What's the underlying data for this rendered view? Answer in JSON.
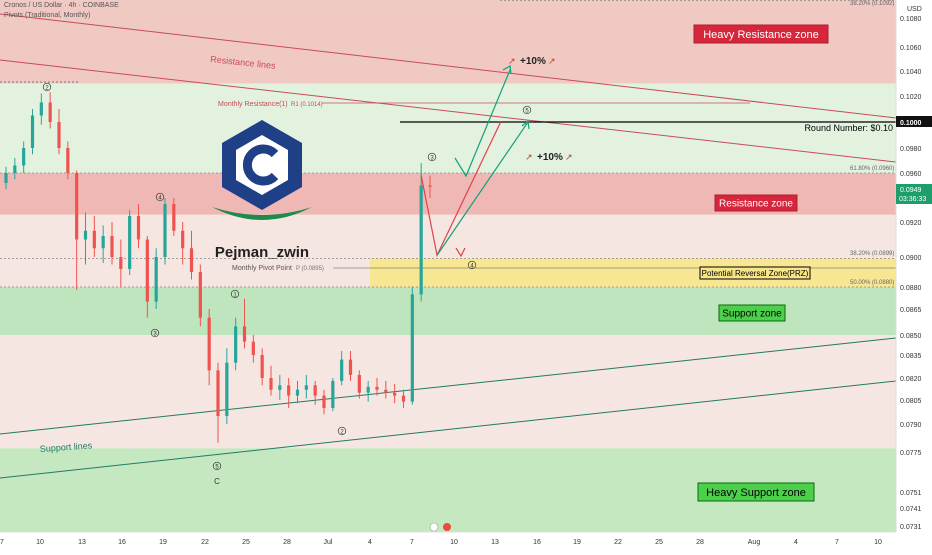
{
  "header": {
    "symbol_line": "Cronos / US Dollar · 4h · COINBASE",
    "indicator_line": "Pivots (Traditional, Monthly)",
    "author": "Pejman_zwin"
  },
  "colors": {
    "up": "#26a69a",
    "down": "#ef5350",
    "resistance_fill": "#f2c1be",
    "support_fill": "#cdeccd",
    "prz_fill": "#f7e58a",
    "logo_blue": "#1f3f87",
    "logo_green": "#1f8a4c"
  },
  "chart_data": {
    "type": "candlestick",
    "title": "Cronos / US Dollar · 4h · COINBASE",
    "y_axis_label": "USD",
    "ylim": [
      0.0725,
      0.1092
    ],
    "y_ticks": [
      "0.1080",
      "0.1060",
      "0.1040",
      "0.1020",
      "0.1000",
      "0.0980",
      "0.0960",
      "0.0940",
      "0.0920",
      "0.0900",
      "0.0880",
      "0.0865",
      "0.0850",
      "0.0835",
      "0.0820",
      "0.0805",
      "0.0790",
      "0.0775",
      "0.0751",
      "0.0741",
      "0.0731"
    ],
    "x_ticks": [
      "7",
      "10",
      "13",
      "16",
      "19",
      "22",
      "25",
      "28",
      "Jul",
      "4",
      "7",
      "10",
      "13",
      "16",
      "19",
      "22",
      "25",
      "28",
      "Aug",
      "4",
      "7",
      "10"
    ],
    "current_price": {
      "value": 0.0949,
      "label": "0.0949",
      "countdown": "03:36:33"
    },
    "round_number": {
      "value": 0.1,
      "label": "0.1000",
      "text": "Round Number: $0.10"
    },
    "zones": [
      {
        "name": "Heavy Resistance zone",
        "from": 0.103,
        "to": 0.1092
      },
      {
        "name": "Resistance zone",
        "from": 0.0926,
        "to": 0.096
      },
      {
        "name": "Potential Reversal Zone(PRZ)",
        "from": 0.088,
        "to": 0.0899
      },
      {
        "name": "Support zone",
        "from": 0.085,
        "to": 0.088
      },
      {
        "name": "Heavy Support zone",
        "from": 0.0731,
        "to": 0.0777
      }
    ],
    "fib_labels": [
      {
        "text": "38.20% (0.1092)",
        "value": 0.1092
      },
      {
        "text": "61.80% (0.0960)",
        "value": 0.096
      },
      {
        "text": "38.20% (0.0899)",
        "value": 0.0899
      },
      {
        "text": "50.00% (0.0880)",
        "value": 0.088
      }
    ],
    "pivots": [
      {
        "text": "Monthly Resistance(1)",
        "value_text": "R1 (0.1014)",
        "value": 0.1014
      },
      {
        "text": "Monthly Pivot Point",
        "value_text": "P (0.0895)",
        "value": 0.0895
      }
    ],
    "line_labels": {
      "resistance": "Resistance lines",
      "support": "Support lines"
    },
    "annotations": [
      "+10%",
      "+10%"
    ],
    "wave_labels": [
      "1",
      "2",
      "3",
      "4",
      "5",
      "C"
    ],
    "candles": [
      [
        0.0952,
        0.0965,
        0.0947,
        0.096
      ],
      [
        0.096,
        0.0972,
        0.0955,
        0.0966
      ],
      [
        0.0966,
        0.0985,
        0.096,
        0.098
      ],
      [
        0.098,
        0.101,
        0.0975,
        0.1005
      ],
      [
        0.1005,
        0.1022,
        0.0998,
        0.1015
      ],
      [
        0.1015,
        0.1023,
        0.0995,
        0.1
      ],
      [
        0.1,
        0.101,
        0.0975,
        0.098
      ],
      [
        0.098,
        0.0985,
        0.0955,
        0.096
      ],
      [
        0.096,
        0.0962,
        0.0878,
        0.091
      ],
      [
        0.091,
        0.0928,
        0.0895,
        0.0915
      ],
      [
        0.0915,
        0.0925,
        0.09,
        0.0905
      ],
      [
        0.0905,
        0.0918,
        0.0896,
        0.0912
      ],
      [
        0.0912,
        0.092,
        0.0895,
        0.09
      ],
      [
        0.09,
        0.091,
        0.088,
        0.0892
      ],
      [
        0.0892,
        0.093,
        0.0888,
        0.0925
      ],
      [
        0.0925,
        0.0935,
        0.0905,
        0.091
      ],
      [
        0.091,
        0.0912,
        0.086,
        0.087
      ],
      [
        0.087,
        0.0905,
        0.0865,
        0.09
      ],
      [
        0.09,
        0.094,
        0.0895,
        0.0935
      ],
      [
        0.0935,
        0.094,
        0.0912,
        0.0915
      ],
      [
        0.0915,
        0.092,
        0.0895,
        0.0905
      ],
      [
        0.0905,
        0.0915,
        0.0885,
        0.089
      ],
      [
        0.089,
        0.0895,
        0.0855,
        0.086
      ],
      [
        0.086,
        0.0865,
        0.0815,
        0.0825
      ],
      [
        0.0825,
        0.083,
        0.078,
        0.0795
      ],
      [
        0.0795,
        0.084,
        0.079,
        0.083
      ],
      [
        0.083,
        0.086,
        0.0825,
        0.0855
      ],
      [
        0.0855,
        0.0872,
        0.084,
        0.0845
      ],
      [
        0.0845,
        0.085,
        0.083,
        0.0835
      ],
      [
        0.0835,
        0.084,
        0.0815,
        0.082
      ],
      [
        0.082,
        0.0828,
        0.0808,
        0.0812
      ],
      [
        0.0812,
        0.0822,
        0.0805,
        0.0815
      ],
      [
        0.0815,
        0.082,
        0.08,
        0.0808
      ],
      [
        0.0808,
        0.0818,
        0.0803,
        0.0812
      ],
      [
        0.0812,
        0.0822,
        0.0806,
        0.0815
      ],
      [
        0.0815,
        0.0818,
        0.0802,
        0.0808
      ],
      [
        0.0808,
        0.0812,
        0.0796,
        0.08
      ],
      [
        0.08,
        0.082,
        0.0798,
        0.0818
      ],
      [
        0.0818,
        0.0838,
        0.0815,
        0.0832
      ],
      [
        0.0832,
        0.0838,
        0.0818,
        0.0822
      ],
      [
        0.0822,
        0.0825,
        0.0806,
        0.081
      ],
      [
        0.081,
        0.0818,
        0.0804,
        0.0814
      ],
      [
        0.0814,
        0.082,
        0.0808,
        0.0812
      ],
      [
        0.0812,
        0.0818,
        0.0806,
        0.081
      ],
      [
        0.081,
        0.0816,
        0.0803,
        0.0808
      ],
      [
        0.0808,
        0.0812,
        0.08,
        0.0804
      ],
      [
        0.0804,
        0.088,
        0.0802,
        0.0875
      ],
      [
        0.0875,
        0.0968,
        0.087,
        0.095
      ],
      [
        0.095,
        0.0958,
        0.094,
        0.0949
      ]
    ],
    "projection_path": [
      {
        "i": 47,
        "v": 0.0958
      },
      {
        "i": 48.8,
        "v": 0.0901
      },
      {
        "i": 56,
        "v": 0.1
      }
    ],
    "alt_path": [
      {
        "i": 49.6,
        "v": 0.0975
      },
      {
        "i": 50.6,
        "v": 0.0965
      },
      {
        "i": 55,
        "v": 0.1042
      }
    ]
  }
}
